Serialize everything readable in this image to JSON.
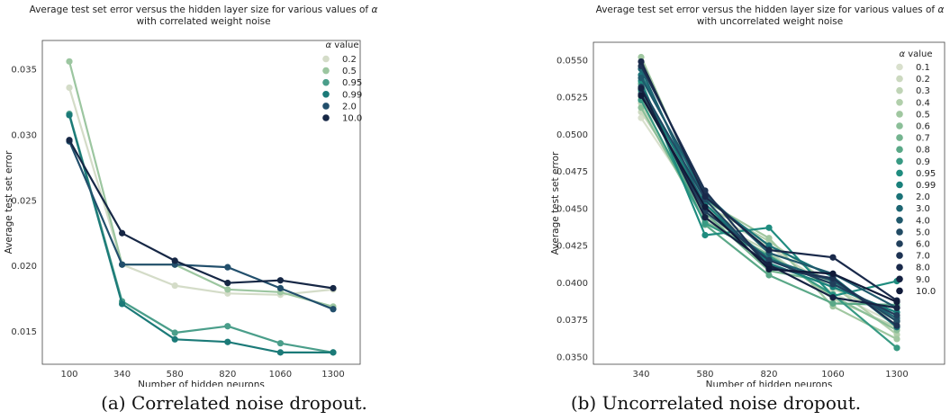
{
  "chart_data": [
    {
      "type": "line",
      "title_line1": "Average test set error versus the hidden layer size for various values of",
      "title_symbol": "α",
      "title_line2": "with correlated weight noise",
      "xlabel": "Number of hidden neurons",
      "ylabel": "Average test set error",
      "categories": [
        "100",
        "340",
        "580",
        "820",
        "1060",
        "1300"
      ],
      "yticks": [
        "0.015",
        "0.020",
        "0.025",
        "0.030",
        "0.035"
      ],
      "ylim": [
        0.0125,
        0.0372
      ],
      "grid": false,
      "legend_position": "top-right",
      "legend_title_symbol": "α",
      "legend_title_text": "value",
      "caption": "(a) Correlated noise dropout.",
      "series": [
        {
          "name": "0.2",
          "color": "#d4dcc8",
          "values": [
            0.0336,
            0.0201,
            0.0185,
            0.0179,
            0.0178,
            0.0182
          ]
        },
        {
          "name": "0.5",
          "color": "#9cc6a0",
          "values": [
            0.0356,
            0.0201,
            0.0201,
            0.0182,
            0.018,
            0.0169
          ]
        },
        {
          "name": "0.95",
          "color": "#4a9e8a",
          "values": [
            0.0316,
            0.0173,
            0.0149,
            0.0154,
            0.0141,
            0.0134
          ]
        },
        {
          "name": "0.99",
          "color": "#1b7a78",
          "values": [
            0.0315,
            0.0171,
            0.0144,
            0.0142,
            0.0134,
            0.0134
          ]
        },
        {
          "name": "2.0",
          "color": "#224f6c",
          "values": [
            0.0295,
            0.0201,
            0.0201,
            0.0199,
            0.0183,
            0.0167
          ]
        },
        {
          "name": "10.0",
          "color": "#162745",
          "values": [
            0.0296,
            0.0225,
            0.0204,
            0.0187,
            0.0189,
            0.0183
          ]
        }
      ]
    },
    {
      "type": "line",
      "title_line1": "Average test set error versus the hidden layer size for various values of",
      "title_symbol": "α",
      "title_line2": "with uncorrelated weight noise",
      "xlabel": "Number of hidden neurons",
      "ylabel": "Average test set error",
      "categories": [
        "340",
        "580",
        "820",
        "1060",
        "1300"
      ],
      "yticks": [
        "0.0350",
        "0.0375",
        "0.0400",
        "0.0425",
        "0.0450",
        "0.0475",
        "0.0500",
        "0.0525",
        "0.0550"
      ],
      "ylim": [
        0.0345,
        0.0562
      ],
      "grid": false,
      "legend_position": "top-right",
      "legend_title_symbol": "α",
      "legend_title_text": "value",
      "caption": "(b) Uncorrelated noise dropout.",
      "series": [
        {
          "name": "0.1",
          "color": "#d9e0cd",
          "values": [
            0.0511,
            0.0447,
            0.0426,
            0.0393,
            0.0372
          ]
        },
        {
          "name": "0.2",
          "color": "#ccd9c0",
          "values": [
            0.0515,
            0.045,
            0.0424,
            0.0396,
            0.0376
          ]
        },
        {
          "name": "0.3",
          "color": "#bfd4b6",
          "values": [
            0.0521,
            0.0444,
            0.0421,
            0.0389,
            0.037
          ]
        },
        {
          "name": "0.4",
          "color": "#b1cfab",
          "values": [
            0.0525,
            0.0452,
            0.0428,
            0.0398,
            0.0365
          ]
        },
        {
          "name": "0.5",
          "color": "#a0c7a0",
          "values": [
            0.0552,
            0.0455,
            0.043,
            0.0384,
            0.0362
          ]
        },
        {
          "name": "0.6",
          "color": "#8bbf98",
          "values": [
            0.0518,
            0.0441,
            0.0419,
            0.0391,
            0.0368
          ]
        },
        {
          "name": "0.7",
          "color": "#74b48f",
          "values": [
            0.0529,
            0.0447,
            0.0408,
            0.04,
            0.0374
          ]
        },
        {
          "name": "0.8",
          "color": "#5aa887",
          "values": [
            0.0534,
            0.0439,
            0.0405,
            0.0386,
            0.0385
          ]
        },
        {
          "name": "0.9",
          "color": "#389a83",
          "values": [
            0.0523,
            0.044,
            0.0418,
            0.0392,
            0.0356
          ]
        },
        {
          "name": "0.95",
          "color": "#1f8c7f",
          "values": [
            0.0536,
            0.0432,
            0.0437,
            0.0391,
            0.0401
          ]
        },
        {
          "name": "0.99",
          "color": "#19807b",
          "values": [
            0.053,
            0.0453,
            0.0413,
            0.0397,
            0.038
          ]
        },
        {
          "name": "2.0",
          "color": "#1a7277",
          "values": [
            0.054,
            0.0457,
            0.0425,
            0.0404,
            0.037
          ]
        },
        {
          "name": "3.0",
          "color": "#1d6572",
          "values": [
            0.0544,
            0.045,
            0.0416,
            0.0401,
            0.0376
          ]
        },
        {
          "name": "4.0",
          "color": "#20596c",
          "values": [
            0.0538,
            0.046,
            0.042,
            0.0406,
            0.0383
          ]
        },
        {
          "name": "5.0",
          "color": "#214b64",
          "values": [
            0.0532,
            0.0456,
            0.0411,
            0.0402,
            0.0374
          ]
        },
        {
          "name": "6.0",
          "color": "#213f5c",
          "values": [
            0.0527,
            0.0448,
            0.0415,
            0.0399,
            0.0378
          ]
        },
        {
          "name": "7.0",
          "color": "#1d3353",
          "values": [
            0.0546,
            0.0462,
            0.041,
            0.0403,
            0.0371
          ]
        },
        {
          "name": "8.0",
          "color": "#19294a",
          "values": [
            0.0549,
            0.0458,
            0.0422,
            0.0417,
            0.0388
          ]
        },
        {
          "name": "9.0",
          "color": "#152242",
          "values": [
            0.0531,
            0.0444,
            0.0412,
            0.039,
            0.0383
          ]
        },
        {
          "name": "10.0",
          "color": "#111b3a",
          "values": [
            0.0526,
            0.0451,
            0.0409,
            0.0406,
            0.0387
          ]
        }
      ]
    }
  ]
}
